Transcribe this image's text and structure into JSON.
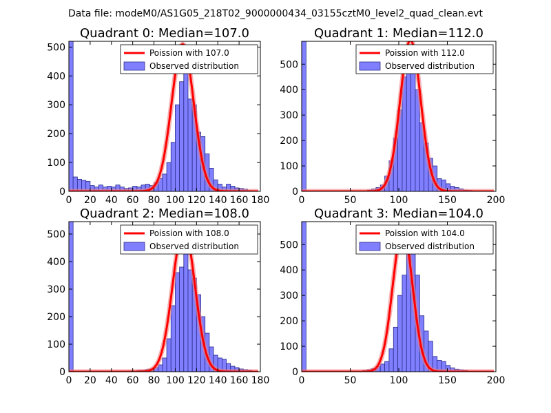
{
  "suptitle": "Data file: modeM0/AS1G05_218T02_9000000434_03155cztM0_level2_quad_clean.evt",
  "colors": {
    "bar_fill": "#7f7fff",
    "bar_edge": "#2b2b8a",
    "curve": "#ff0000",
    "curve_bg": "#f08080"
  },
  "chart_data": [
    {
      "type": "bar",
      "title": "Quadrant 0: Median=107.0",
      "xlim": [
        0,
        180
      ],
      "ylim": [
        0,
        520
      ],
      "xticks": [
        0,
        20,
        40,
        60,
        80,
        100,
        120,
        140,
        160,
        180
      ],
      "yticks": [
        0,
        100,
        200,
        300,
        400,
        500
      ],
      "bin_width": 4,
      "bins": [
        0,
        4,
        8,
        12,
        16,
        20,
        24,
        28,
        32,
        36,
        40,
        44,
        48,
        52,
        56,
        60,
        64,
        68,
        72,
        76,
        80,
        84,
        88,
        92,
        96,
        100,
        104,
        108,
        112,
        116,
        120,
        124,
        128,
        132,
        136,
        140,
        144,
        148,
        152,
        156,
        160,
        164,
        168,
        172
      ],
      "counts": [
        520,
        50,
        42,
        38,
        35,
        20,
        15,
        22,
        15,
        18,
        15,
        22,
        15,
        10,
        12,
        18,
        15,
        22,
        25,
        20,
        30,
        45,
        60,
        100,
        170,
        300,
        380,
        410,
        320,
        300,
        205,
        190,
        130,
        80,
        40,
        25,
        15,
        25,
        18,
        12,
        10,
        8,
        3,
        2
      ],
      "median": 107.0,
      "legend": [
        "Poission with 107.0",
        "Observed distribution"
      ]
    },
    {
      "type": "bar",
      "title": "Quadrant 1: Median=112.0",
      "xlim": [
        0,
        200
      ],
      "ylim": [
        0,
        590
      ],
      "xticks": [
        0,
        50,
        100,
        150,
        200
      ],
      "yticks": [
        0,
        100,
        200,
        300,
        400,
        500
      ],
      "bin_width": 4.5,
      "bins": [
        0,
        4.5,
        9,
        13.5,
        18,
        22.5,
        27,
        31.5,
        36,
        40.5,
        45,
        49.5,
        54,
        58.5,
        63,
        67.5,
        72,
        76.5,
        81,
        85.5,
        90,
        94.5,
        99,
        103.5,
        108,
        112.5,
        117,
        121.5,
        126,
        130.5,
        135,
        139.5,
        144,
        148.5,
        153,
        157.5,
        162,
        166.5,
        171,
        175.5,
        180,
        184.5
      ],
      "counts": [
        590,
        2,
        2,
        2,
        2,
        2,
        2,
        2,
        2,
        2,
        2,
        2,
        2,
        2,
        3,
        5,
        10,
        15,
        25,
        60,
        120,
        210,
        320,
        450,
        520,
        470,
        400,
        270,
        190,
        130,
        100,
        50,
        45,
        30,
        20,
        15,
        10,
        5,
        4,
        3,
        2,
        1
      ],
      "median": 112.0,
      "legend": [
        "Poission with 112.0",
        "Observed distribution"
      ]
    },
    {
      "type": "bar",
      "title": "Quadrant 2: Median=108.0",
      "xlim": [
        0,
        180
      ],
      "ylim": [
        0,
        545
      ],
      "xticks": [
        0,
        20,
        40,
        60,
        80,
        100,
        120,
        140,
        160,
        180
      ],
      "yticks": [
        0,
        100,
        200,
        300,
        400,
        500
      ],
      "bin_width": 4,
      "bins": [
        0,
        4,
        8,
        12,
        16,
        20,
        24,
        28,
        32,
        36,
        40,
        44,
        48,
        52,
        56,
        60,
        64,
        68,
        72,
        76,
        80,
        84,
        88,
        92,
        96,
        100,
        104,
        108,
        112,
        116,
        120,
        124,
        128,
        132,
        136,
        140,
        144,
        148,
        152,
        156,
        160,
        164,
        168,
        172
      ],
      "counts": [
        545,
        2,
        2,
        2,
        2,
        2,
        2,
        2,
        2,
        2,
        2,
        2,
        2,
        2,
        3,
        3,
        5,
        5,
        8,
        10,
        15,
        25,
        50,
        120,
        240,
        360,
        380,
        500,
        370,
        340,
        280,
        200,
        140,
        90,
        60,
        50,
        45,
        30,
        20,
        15,
        10,
        8,
        5,
        2
      ],
      "median": 108.0,
      "legend": [
        "Poission with 108.0",
        "Observed distribution"
      ]
    },
    {
      "type": "bar",
      "title": "Quadrant 3: Median=104.0",
      "xlim": [
        0,
        200
      ],
      "ylim": [
        0,
        590
      ],
      "xticks": [
        0,
        50,
        100,
        150,
        200
      ],
      "yticks": [
        0,
        100,
        200,
        300,
        400,
        500
      ],
      "bin_width": 4.5,
      "bins": [
        0,
        4.5,
        9,
        13.5,
        18,
        22.5,
        27,
        31.5,
        36,
        40.5,
        45,
        49.5,
        54,
        58.5,
        63,
        67.5,
        72,
        76.5,
        81,
        85.5,
        90,
        94.5,
        99,
        103.5,
        108,
        112.5,
        117,
        121.5,
        126,
        130.5,
        135,
        139.5,
        144,
        148.5,
        153,
        157.5,
        162,
        166.5,
        171,
        175.5
      ],
      "counts": [
        590,
        2,
        2,
        2,
        2,
        2,
        2,
        2,
        2,
        2,
        2,
        2,
        2,
        3,
        5,
        8,
        12,
        20,
        30,
        40,
        90,
        175,
        300,
        380,
        520,
        480,
        380,
        220,
        160,
        120,
        60,
        45,
        40,
        25,
        15,
        10,
        8,
        5,
        3,
        2
      ],
      "median": 104.0,
      "legend": [
        "Poission with 104.0",
        "Observed distribution"
      ]
    }
  ]
}
